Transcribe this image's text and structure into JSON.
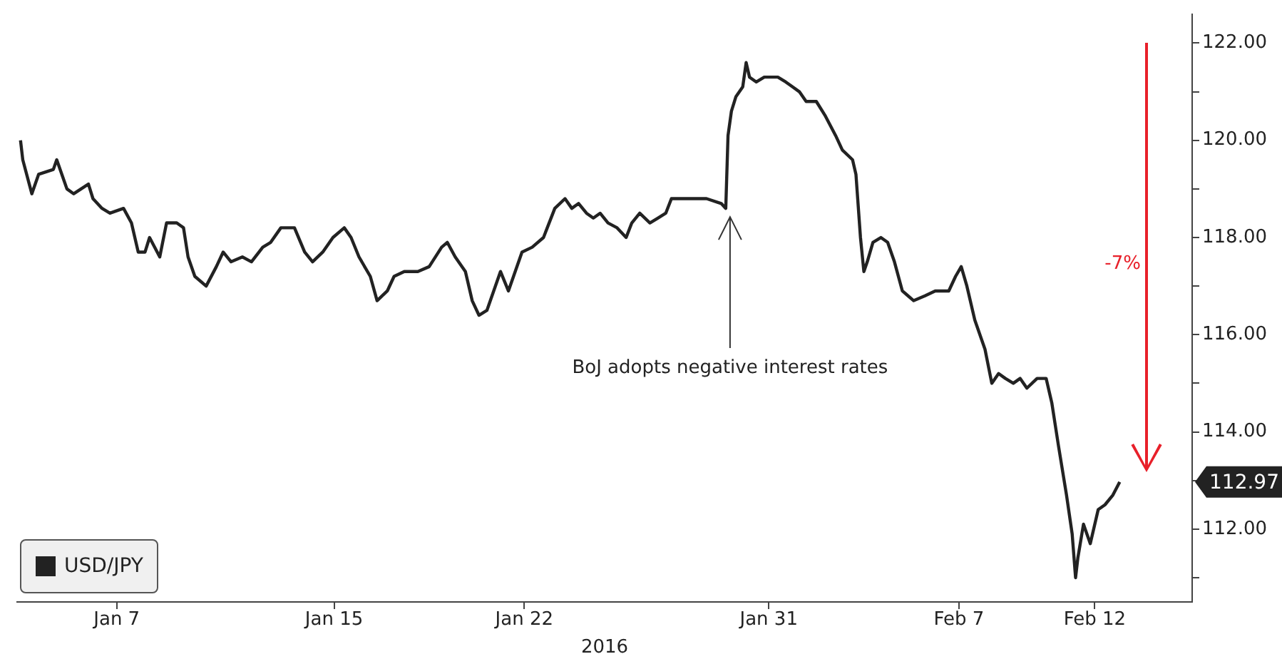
{
  "chart_data": {
    "type": "line",
    "xlabel": "2016",
    "x": [
      "2016-01-03T11:00",
      "2016-01-03T13:00",
      "2016-01-03T21:00",
      "2016-01-04T03:00",
      "2016-01-04T16:00",
      "2016-01-04T19:00",
      "2016-01-05T04:00",
      "2016-01-05T10:00",
      "2016-01-05T23:00",
      "2016-01-06T03:00",
      "2016-01-06T11:00",
      "2016-01-06T18:00",
      "2016-01-07T06:00",
      "2016-01-07T13:00",
      "2016-01-07T19:00",
      "2016-01-08T01:00",
      "2016-01-08T05:00",
      "2016-01-08T14:00",
      "2016-01-08T20:00",
      "2016-01-09T05:00",
      "2016-01-09T11:00",
      "2016-01-09T15:00",
      "2016-01-09T21:00",
      "2016-01-10T07:00",
      "2016-01-10T16:00",
      "2016-01-10T22:00",
      "2016-01-11T05:00",
      "2016-01-11T15:00",
      "2016-01-11T23:00",
      "2016-01-12T09:00",
      "2016-01-12T16:00",
      "2016-01-13T01:00",
      "2016-01-13T13:00",
      "2016-01-13T22:00",
      "2016-01-14T05:00",
      "2016-01-14T14:00",
      "2016-01-14T23:00",
      "2016-01-15T09:00",
      "2016-01-15T15:00",
      "2016-01-15T22:00",
      "2016-01-16T08:00",
      "2016-01-16T14:00",
      "2016-01-16T23:00",
      "2016-01-17T05:00",
      "2016-01-17T14:00",
      "2016-01-18T02:00",
      "2016-01-18T12:00",
      "2016-01-18T23:00",
      "2016-01-19T04:00",
      "2016-01-19T11:00",
      "2016-01-19T20:00",
      "2016-01-20T02:00",
      "2016-01-20T08:00",
      "2016-01-20T15:00",
      "2016-01-20T21:00",
      "2016-01-21T03:00",
      "2016-01-21T10:00",
      "2016-01-21T16:00",
      "2016-01-21T22:00",
      "2016-01-22T07:00",
      "2016-01-22T17:00",
      "2016-01-23T03:00",
      "2016-01-23T12:00",
      "2016-01-23T18:00",
      "2016-01-24T00:00",
      "2016-01-24T07:00",
      "2016-01-24T13:00",
      "2016-01-24T19:00",
      "2016-01-25T02:00",
      "2016-01-25T10:00",
      "2016-01-25T18:00",
      "2016-01-25T23:00",
      "2016-01-26T06:00",
      "2016-01-26T15:00",
      "2016-01-26T22:00",
      "2016-01-27T05:00",
      "2016-01-27T10:00",
      "2016-01-27T20:00",
      "2016-01-28T05:00",
      "2016-01-28T17:00",
      "2016-01-29T06:00",
      "2016-01-29T10:00",
      "2016-01-29T12:00",
      "2016-01-29T15:00",
      "2016-01-29T19:00",
      "2016-01-30T01:00",
      "2016-01-30T04:00",
      "2016-01-30T07:00",
      "2016-01-30T13:00",
      "2016-01-30T20:00",
      "2016-01-31T08:00",
      "2016-01-31T15:00",
      "2016-01-31T21:00",
      "2016-02-01T03:00",
      "2016-02-01T09:00",
      "2016-02-01T18:00",
      "2016-02-02T02:00",
      "2016-02-02T11:00",
      "2016-02-02T17:00",
      "2016-02-03T02:00",
      "2016-02-03T05:00",
      "2016-02-03T09:00",
      "2016-02-03T12:00",
      "2016-02-03T15:00",
      "2016-02-03T20:00",
      "2016-02-04T03:00",
      "2016-02-04T09:00",
      "2016-02-04T15:00",
      "2016-02-04T22:00",
      "2016-02-05T08:00",
      "2016-02-05T18:00",
      "2016-02-06T03:00",
      "2016-02-06T09:00",
      "2016-02-06T15:00",
      "2016-02-06T21:00",
      "2016-02-07T02:00",
      "2016-02-07T07:00",
      "2016-02-07T14:00",
      "2016-02-07T23:00",
      "2016-02-08T05:00",
      "2016-02-08T11:00",
      "2016-02-08T17:00",
      "2016-02-09T00:00",
      "2016-02-09T06:00",
      "2016-02-09T12:00",
      "2016-02-09T21:00",
      "2016-02-10T05:00",
      "2016-02-10T10:00",
      "2016-02-10T16:00",
      "2016-02-10T23:00",
      "2016-02-11T04:00",
      "2016-02-11T07:00",
      "2016-02-11T09:00",
      "2016-02-11T14:00",
      "2016-02-11T20:00",
      "2016-02-12T03:00",
      "2016-02-12T09:00",
      "2016-02-12T16:00",
      "2016-02-12T22:00"
    ],
    "series": [
      {
        "name": "USD/JPY",
        "color": "#222222",
        "values": [
          120.0,
          119.6,
          118.9,
          119.3,
          119.4,
          119.6,
          119.0,
          118.9,
          119.1,
          118.8,
          118.6,
          118.5,
          118.6,
          118.3,
          117.7,
          117.7,
          118.0,
          117.6,
          118.3,
          118.3,
          118.2,
          117.6,
          117.2,
          117.0,
          117.4,
          117.7,
          117.5,
          117.6,
          117.5,
          117.8,
          117.9,
          118.2,
          118.2,
          117.7,
          117.5,
          117.7,
          118.0,
          118.2,
          118.0,
          117.6,
          117.2,
          116.7,
          116.9,
          117.2,
          117.3,
          117.3,
          117.4,
          117.8,
          117.9,
          117.6,
          117.3,
          116.7,
          116.4,
          116.5,
          116.9,
          117.3,
          116.9,
          117.3,
          117.7,
          117.8,
          118.0,
          118.6,
          118.8,
          118.6,
          118.7,
          118.5,
          118.4,
          118.5,
          118.3,
          118.2,
          118.0,
          118.3,
          118.5,
          118.3,
          118.4,
          118.5,
          118.8,
          118.8,
          118.8,
          118.8,
          118.7,
          118.6,
          120.1,
          120.6,
          120.9,
          121.1,
          121.6,
          121.3,
          121.2,
          121.3,
          121.3,
          121.2,
          121.1,
          121.0,
          120.8,
          120.8,
          120.5,
          120.1,
          119.8,
          119.6,
          119.3,
          118.0,
          117.3,
          117.5,
          117.9,
          118.0,
          117.9,
          117.5,
          116.9,
          116.7,
          116.8,
          116.9,
          116.9,
          116.9,
          117.2,
          117.4,
          117.0,
          116.3,
          115.7,
          115.0,
          115.2,
          115.1,
          115.0,
          115.1,
          114.9,
          115.1,
          115.1,
          114.6,
          113.7,
          112.7,
          111.9,
          111.0,
          111.4,
          112.1,
          111.7,
          112.4,
          112.5,
          112.7,
          112.97
        ]
      }
    ],
    "xlim": [
      "2016-01-03T08:00",
      "2016-02-15T14:00"
    ],
    "xticks": [
      {
        "value": "2016-01-07",
        "label": "Jan 7"
      },
      {
        "value": "2016-01-15",
        "label": "Jan 15"
      },
      {
        "value": "2016-01-22",
        "label": "Jan 22"
      },
      {
        "value": "2016-01-31",
        "label": "Jan 31"
      },
      {
        "value": "2016-02-07",
        "label": "Feb 7"
      },
      {
        "value": "2016-02-12",
        "label": "Feb 12"
      }
    ],
    "ylim": [
      110.5,
      122.6
    ],
    "yticks": [
      {
        "value": 111,
        "label": null
      },
      {
        "value": 112,
        "label": "112.00"
      },
      {
        "value": 113,
        "label": null
      },
      {
        "value": 114,
        "label": "114.00"
      },
      {
        "value": 115,
        "label": null
      },
      {
        "value": 116,
        "label": "116.00"
      },
      {
        "value": 117,
        "label": null
      },
      {
        "value": 118,
        "label": "118.00"
      },
      {
        "value": 119,
        "label": null
      },
      {
        "value": 120,
        "label": "120.00"
      },
      {
        "value": 121,
        "label": null
      },
      {
        "value": 122,
        "label": "122.00"
      }
    ],
    "legend": "bottom left",
    "annotations": [
      {
        "text": "BoJ adopts negative interest rates",
        "x": "2016-01-29T10:00",
        "y": 118.6
      },
      "-7%",
      "112.97"
    ]
  }
}
